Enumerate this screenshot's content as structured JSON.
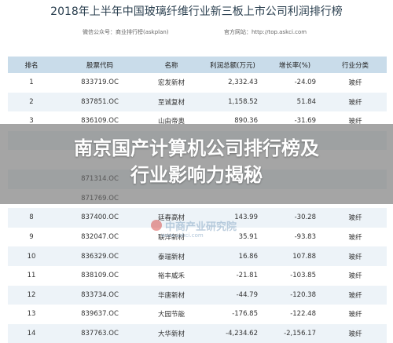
{
  "title": "2018年上半年中国玻璃纤维行业新三板上市公司利润排行榜",
  "wechat": "微信公众号：商业排行榜(askplan)",
  "website": "官方网站：http://top.askci.com",
  "headers": [
    "排名",
    "股票代码",
    "名称",
    "利润总额(万元)",
    "增长率(%)",
    "行业分类"
  ],
  "rows": [
    {
      "rank": "1",
      "code": "833719.OC",
      "name": "宏发新材",
      "profit": "2,332.43",
      "growth": "-24.09",
      "industry": "玻纤"
    },
    {
      "rank": "2",
      "code": "837851.OC",
      "name": "至诚复材",
      "profit": "1,158.52",
      "growth": "51.84",
      "industry": "玻纤"
    },
    {
      "rank": "3",
      "code": "836109.OC",
      "name": "山由帝奥",
      "profit": "890.36",
      "growth": "-31.69",
      "industry": "玻纤"
    },
    {
      "rank": "",
      "code": "",
      "name": "",
      "profit": "",
      "growth": "",
      "industry": ""
    },
    {
      "rank": "",
      "code": "",
      "name": "",
      "profit": "",
      "growth": "",
      "industry": ""
    },
    {
      "rank": "",
      "code": "871314.OC",
      "name": "",
      "profit": "",
      "growth": "",
      "industry": ""
    },
    {
      "rank": "",
      "code": "871769.OC",
      "name": "",
      "profit": "",
      "growth": "",
      "industry": ""
    },
    {
      "rank": "8",
      "code": "837400.OC",
      "name": "廷春高材",
      "profit": "143.99",
      "growth": "-30.28",
      "industry": "玻纤"
    },
    {
      "rank": "9",
      "code": "832047.OC",
      "name": "联洋新材",
      "profit": "35.91",
      "growth": "-93.83",
      "industry": "玻纤"
    },
    {
      "rank": "10",
      "code": "836329.OC",
      "name": "泰瑞新材",
      "profit": "16.86",
      "growth": "107.88",
      "industry": "玻纤"
    },
    {
      "rank": "11",
      "code": "838109.OC",
      "name": "裕丰威禾",
      "profit": "-21.81",
      "growth": "-103.85",
      "industry": "玻纤"
    },
    {
      "rank": "12",
      "code": "833734.OC",
      "name": "华唐新材",
      "profit": "-44.79",
      "growth": "-120.38",
      "industry": "玻纤"
    },
    {
      "rank": "13",
      "code": "839637.OC",
      "name": "大园节能",
      "profit": "-176.85",
      "growth": "-122.48",
      "industry": "玻纤"
    },
    {
      "rank": "14",
      "code": "837763.OC",
      "name": "大华新材",
      "profit": "-4,234.62",
      "growth": "-2,156.17",
      "industry": "玻纤"
    }
  ],
  "watermark": {
    "text": "中商产业研究院",
    "url": "www.askci.com"
  },
  "headline": [
    "南京国产计算机公司排行榜及",
    "行业影响力揭秘"
  ]
}
